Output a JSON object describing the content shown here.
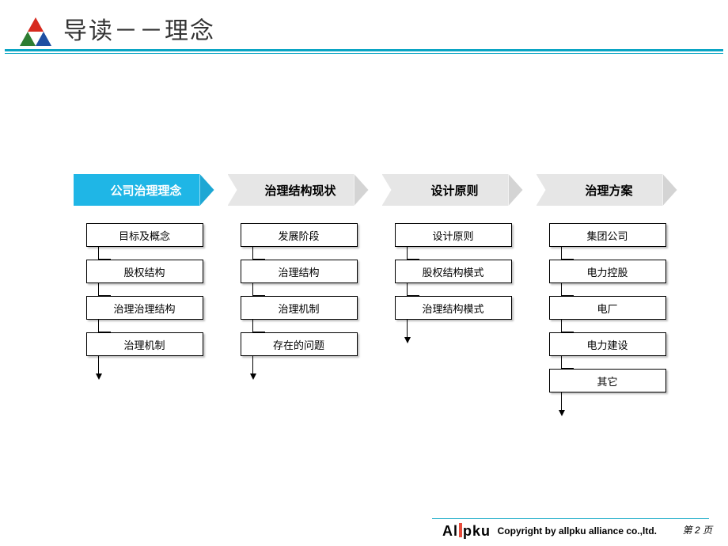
{
  "header": {
    "title": "导读－－理念",
    "logo_colors": {
      "top": "#d62a1f",
      "left": "#2e7d32",
      "right": "#1e4fa3"
    },
    "hr_color": "#0aa5c4"
  },
  "chevron": {
    "active_bg": "#1fb6e6",
    "active_text": "#ffffff",
    "inactive_bg": "#e6e6e6",
    "inactive_text": "#000000",
    "tip_dim_factor": 0.9
  },
  "columns": [
    {
      "header": "公司治理理念",
      "active": true,
      "items": [
        "目标及概念",
        "股权结构",
        "治理治理结构",
        "治理机制"
      ]
    },
    {
      "header": "治理结构现状",
      "active": false,
      "items": [
        "发展阶段",
        "治理结构",
        "治理机制",
        "存在的问题"
      ]
    },
    {
      "header": "设计原则",
      "active": false,
      "items": [
        "设计原则",
        "股权结构模式",
        "治理结构模式"
      ]
    },
    {
      "header": "治理方案",
      "active": false,
      "items": [
        "集团公司",
        "电力控股",
        "电厂",
        "电力建设",
        "其它"
      ]
    }
  ],
  "footer": {
    "brand_left": "Al",
    "brand_right": "pku",
    "brand_bar_color": "#e74c3c",
    "copyright": "Copyright by  allpku alliance co.,ltd.",
    "page_label": "第 2 页"
  }
}
